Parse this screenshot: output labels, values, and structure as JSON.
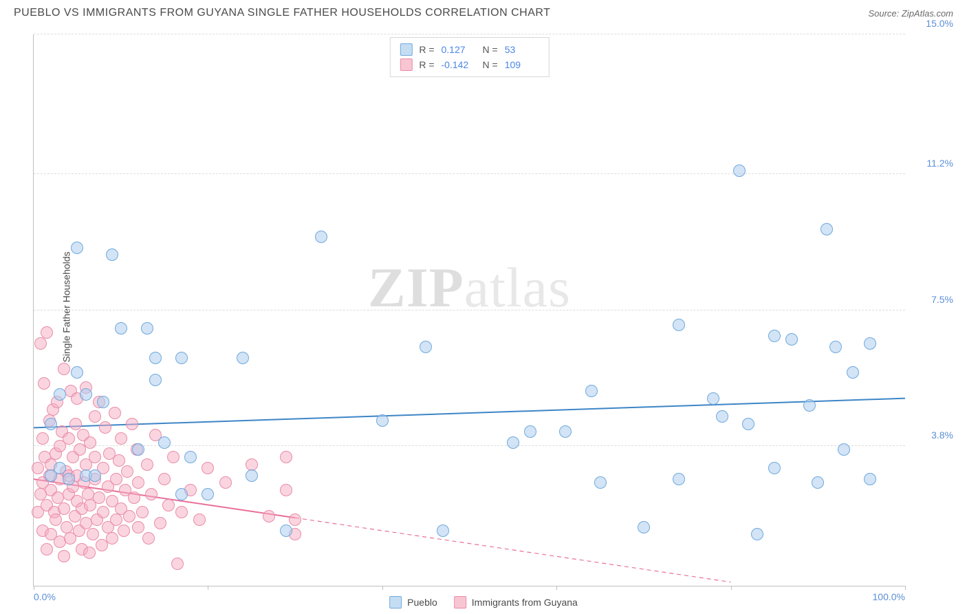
{
  "meta": {
    "title": "PUEBLO VS IMMIGRANTS FROM GUYANA SINGLE FATHER HOUSEHOLDS CORRELATION CHART",
    "source": "Source: ZipAtlas.com",
    "y_axis_label": "Single Father Households",
    "watermark_a": "ZIP",
    "watermark_b": "atlas"
  },
  "chart": {
    "type": "scatter",
    "xlim": [
      0,
      100
    ],
    "ylim": [
      0,
      15
    ],
    "x_ticks": [
      0,
      20,
      40,
      60,
      80,
      100
    ],
    "x_tick_labels": [
      "0.0%",
      "",
      "",
      "",
      "",
      "100.0%"
    ],
    "y_grid": [
      3.8,
      7.5,
      11.2,
      15.0
    ],
    "y_grid_labels": [
      "3.8%",
      "7.5%",
      "11.2%",
      "15.0%"
    ],
    "grid_color": "#dcdcdc",
    "axis_color": "#bfbfbf",
    "background_color": "#ffffff",
    "point_radius": 9,
    "series": [
      {
        "name": "Pueblo",
        "color_fill": "rgba(173,206,238,0.55)",
        "color_stroke": "#6fa8dc",
        "R": "0.127",
        "N": "53",
        "trend": {
          "x1": 0,
          "y1": 4.3,
          "x2": 100,
          "y2": 5.1,
          "solid_until_x": 100,
          "color": "#3d85c6",
          "width": 2
        },
        "points": [
          [
            2,
            4.4
          ],
          [
            2,
            3.0
          ],
          [
            3,
            3.2
          ],
          [
            3,
            5.2
          ],
          [
            4,
            2.9
          ],
          [
            5,
            9.2
          ],
          [
            5,
            5.8
          ],
          [
            6,
            3.0
          ],
          [
            6,
            5.2
          ],
          [
            7,
            3.0
          ],
          [
            8,
            5.0
          ],
          [
            9,
            9.0
          ],
          [
            10,
            7.0
          ],
          [
            12,
            3.7
          ],
          [
            13,
            7.0
          ],
          [
            14,
            5.6
          ],
          [
            14,
            6.2
          ],
          [
            15,
            3.9
          ],
          [
            17,
            6.2
          ],
          [
            17,
            2.5
          ],
          [
            18,
            3.5
          ],
          [
            20,
            2.5
          ],
          [
            24,
            6.2
          ],
          [
            25,
            3.0
          ],
          [
            29,
            1.5
          ],
          [
            33,
            9.5
          ],
          [
            40,
            4.5
          ],
          [
            45,
            6.5
          ],
          [
            47,
            1.5
          ],
          [
            55,
            3.9
          ],
          [
            57,
            4.2
          ],
          [
            61,
            4.2
          ],
          [
            64,
            5.3
          ],
          [
            65,
            2.8
          ],
          [
            70,
            1.6
          ],
          [
            74,
            7.1
          ],
          [
            74,
            2.9
          ],
          [
            78,
            5.1
          ],
          [
            79,
            4.6
          ],
          [
            81,
            11.3
          ],
          [
            82,
            4.4
          ],
          [
            83,
            1.4
          ],
          [
            85,
            6.8
          ],
          [
            85,
            3.2
          ],
          [
            87,
            6.7
          ],
          [
            89,
            4.9
          ],
          [
            90,
            2.8
          ],
          [
            91,
            9.7
          ],
          [
            92,
            6.5
          ],
          [
            93,
            3.7
          ],
          [
            94,
            5.8
          ],
          [
            96,
            6.6
          ],
          [
            96,
            2.9
          ]
        ]
      },
      {
        "name": "Immigrants from Guyana",
        "color_fill": "rgba(245,172,193,0.5)",
        "color_stroke": "#e98ba8",
        "R": "-0.142",
        "N": "109",
        "trend": {
          "x1": 0,
          "y1": 2.9,
          "x2": 80,
          "y2": 0.1,
          "solid_until_x": 30,
          "color": "#e86f98",
          "width": 2
        },
        "points": [
          [
            0.5,
            2.0
          ],
          [
            0.5,
            3.2
          ],
          [
            0.8,
            6.6
          ],
          [
            0.8,
            2.5
          ],
          [
            1,
            4.0
          ],
          [
            1,
            1.5
          ],
          [
            1,
            2.8
          ],
          [
            1.2,
            5.5
          ],
          [
            1.3,
            3.5
          ],
          [
            1.5,
            2.2
          ],
          [
            1.5,
            6.9
          ],
          [
            1.5,
            1.0
          ],
          [
            1.8,
            3.0
          ],
          [
            1.8,
            4.5
          ],
          [
            2,
            2.6
          ],
          [
            2,
            1.4
          ],
          [
            2,
            3.3
          ],
          [
            2.2,
            4.8
          ],
          [
            2.4,
            2.0
          ],
          [
            2.5,
            3.6
          ],
          [
            2.5,
            1.8
          ],
          [
            2.7,
            5.0
          ],
          [
            2.8,
            2.4
          ],
          [
            3,
            3.8
          ],
          [
            3,
            1.2
          ],
          [
            3,
            2.9
          ],
          [
            3.2,
            4.2
          ],
          [
            3.5,
            2.1
          ],
          [
            3.5,
            5.9
          ],
          [
            3.5,
            0.8
          ],
          [
            3.7,
            3.1
          ],
          [
            3.8,
            1.6
          ],
          [
            4,
            2.5
          ],
          [
            4,
            4.0
          ],
          [
            4,
            3.0
          ],
          [
            4.2,
            1.3
          ],
          [
            4.3,
            5.3
          ],
          [
            4.5,
            2.7
          ],
          [
            4.5,
            3.5
          ],
          [
            4.7,
            1.9
          ],
          [
            4.8,
            4.4
          ],
          [
            5,
            2.3
          ],
          [
            5,
            3.0
          ],
          [
            5,
            5.1
          ],
          [
            5.2,
            1.5
          ],
          [
            5.3,
            3.7
          ],
          [
            5.5,
            2.1
          ],
          [
            5.5,
            1.0
          ],
          [
            5.7,
            4.1
          ],
          [
            5.8,
            2.8
          ],
          [
            6,
            3.3
          ],
          [
            6,
            1.7
          ],
          [
            6,
            5.4
          ],
          [
            6.2,
            2.5
          ],
          [
            6.4,
            0.9
          ],
          [
            6.5,
            3.9
          ],
          [
            6.5,
            2.2
          ],
          [
            6.8,
            1.4
          ],
          [
            7,
            4.6
          ],
          [
            7,
            2.9
          ],
          [
            7,
            3.5
          ],
          [
            7.3,
            1.8
          ],
          [
            7.5,
            2.4
          ],
          [
            7.5,
            5.0
          ],
          [
            7.8,
            1.1
          ],
          [
            8,
            3.2
          ],
          [
            8,
            2.0
          ],
          [
            8.2,
            4.3
          ],
          [
            8.5,
            1.6
          ],
          [
            8.5,
            2.7
          ],
          [
            8.7,
            3.6
          ],
          [
            9,
            1.3
          ],
          [
            9,
            2.3
          ],
          [
            9.3,
            4.7
          ],
          [
            9.5,
            2.9
          ],
          [
            9.5,
            1.8
          ],
          [
            9.8,
            3.4
          ],
          [
            10,
            2.1
          ],
          [
            10,
            4.0
          ],
          [
            10.3,
            1.5
          ],
          [
            10.5,
            2.6
          ],
          [
            10.7,
            3.1
          ],
          [
            11,
            1.9
          ],
          [
            11.3,
            4.4
          ],
          [
            11.5,
            2.4
          ],
          [
            11.8,
            3.7
          ],
          [
            12,
            1.6
          ],
          [
            12,
            2.8
          ],
          [
            12.5,
            2.0
          ],
          [
            13,
            3.3
          ],
          [
            13.2,
            1.3
          ],
          [
            13.5,
            2.5
          ],
          [
            14,
            4.1
          ],
          [
            14.5,
            1.7
          ],
          [
            15,
            2.9
          ],
          [
            15.5,
            2.2
          ],
          [
            16,
            3.5
          ],
          [
            16.5,
            0.6
          ],
          [
            17,
            2.0
          ],
          [
            18,
            2.6
          ],
          [
            19,
            1.8
          ],
          [
            20,
            3.2
          ],
          [
            22,
            2.8
          ],
          [
            25,
            3.3
          ],
          [
            27,
            1.9
          ],
          [
            29,
            2.6
          ],
          [
            29,
            3.5
          ],
          [
            30,
            1.8
          ],
          [
            30,
            1.4
          ]
        ]
      }
    ]
  },
  "bottom_legend": [
    {
      "swatch": "blue",
      "label": "Pueblo"
    },
    {
      "swatch": "pink",
      "label": "Immigrants from Guyana"
    }
  ]
}
